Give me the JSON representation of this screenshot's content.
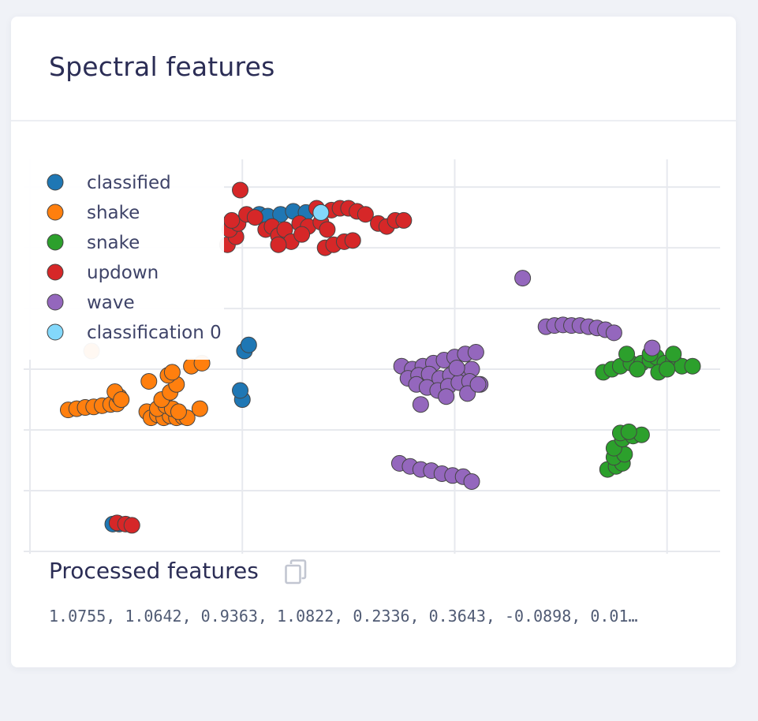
{
  "card": {
    "title": "Spectral features",
    "processed_title": "Processed features",
    "copy_icon": "copy-icon",
    "processed_values": "1.0755, 1.0642, 0.9363, 1.0822, 0.2336, 0.3643, -0.0898, 0.01…"
  },
  "chart_data": {
    "type": "scatter",
    "grid": true,
    "legend_placement": "top-left",
    "xlim": [
      0,
      3.25
    ],
    "ylim": [
      0,
      6.3
    ],
    "series": [
      {
        "name": "classified",
        "color": "#1f77b4",
        "points": [
          [
            0.39,
            0.45
          ],
          [
            0.42,
            0.45
          ],
          [
            1.0,
            2.5
          ],
          [
            0.99,
            2.65
          ],
          [
            1.01,
            3.3
          ],
          [
            1.03,
            3.4
          ],
          [
            1.08,
            5.55
          ],
          [
            1.12,
            5.52
          ],
          [
            1.18,
            5.55
          ],
          [
            1.24,
            5.6
          ],
          [
            1.3,
            5.58
          ]
        ]
      },
      {
        "name": "shake",
        "color": "#ff7f0e",
        "points": [
          [
            0.18,
            2.33
          ],
          [
            0.22,
            2.35
          ],
          [
            0.26,
            2.37
          ],
          [
            0.3,
            2.38
          ],
          [
            0.34,
            2.4
          ],
          [
            0.38,
            2.42
          ],
          [
            0.41,
            2.43
          ],
          [
            0.42,
            2.55
          ],
          [
            0.4,
            2.63
          ],
          [
            0.43,
            2.5
          ],
          [
            0.55,
            2.3
          ],
          [
            0.57,
            2.2
          ],
          [
            0.6,
            2.25
          ],
          [
            0.63,
            2.2
          ],
          [
            0.66,
            2.23
          ],
          [
            0.69,
            2.2
          ],
          [
            0.72,
            2.22
          ],
          [
            0.74,
            2.2
          ],
          [
            0.6,
            2.35
          ],
          [
            0.64,
            2.4
          ],
          [
            0.67,
            2.35
          ],
          [
            0.7,
            2.3
          ],
          [
            0.62,
            2.5
          ],
          [
            0.66,
            2.62
          ],
          [
            0.69,
            2.75
          ],
          [
            0.56,
            2.8
          ],
          [
            0.65,
            2.9
          ],
          [
            0.67,
            2.95
          ],
          [
            0.8,
            2.35
          ],
          [
            0.76,
            3.05
          ],
          [
            0.81,
            3.1
          ],
          [
            0.29,
            3.3
          ]
        ]
      },
      {
        "name": "snake",
        "color": "#2ca02c",
        "points": [
          [
            2.7,
            2.95
          ],
          [
            2.74,
            3.0
          ],
          [
            2.78,
            3.05
          ],
          [
            2.83,
            3.1
          ],
          [
            2.88,
            3.1
          ],
          [
            2.92,
            3.15
          ],
          [
            2.95,
            3.2
          ],
          [
            2.99,
            3.1
          ],
          [
            3.03,
            3.15
          ],
          [
            3.07,
            3.05
          ],
          [
            3.12,
            3.05
          ],
          [
            2.86,
            3.0
          ],
          [
            2.96,
            2.95
          ],
          [
            3.0,
            3.0
          ],
          [
            2.81,
            3.25
          ],
          [
            2.92,
            3.25
          ],
          [
            3.03,
            3.25
          ],
          [
            2.72,
            1.35
          ],
          [
            2.76,
            1.4
          ],
          [
            2.79,
            1.45
          ],
          [
            2.75,
            1.55
          ],
          [
            2.8,
            1.6
          ],
          [
            2.75,
            1.7
          ],
          [
            2.79,
            1.85
          ],
          [
            2.84,
            1.9
          ],
          [
            2.88,
            1.92
          ],
          [
            2.78,
            1.95
          ],
          [
            2.82,
            1.97
          ]
        ]
      },
      {
        "name": "updown",
        "color": "#d62728",
        "points": [
          [
            0.41,
            0.47
          ],
          [
            0.45,
            0.45
          ],
          [
            0.48,
            0.43
          ],
          [
            0.99,
            5.95
          ],
          [
            0.93,
            5.05
          ],
          [
            0.97,
            5.18
          ],
          [
            0.94,
            5.3
          ],
          [
            0.98,
            5.4
          ],
          [
            0.95,
            5.45
          ],
          [
            1.02,
            5.55
          ],
          [
            1.06,
            5.5
          ],
          [
            1.11,
            5.3
          ],
          [
            1.14,
            5.35
          ],
          [
            1.17,
            5.2
          ],
          [
            1.2,
            5.3
          ],
          [
            1.23,
            5.1
          ],
          [
            1.27,
            5.4
          ],
          [
            1.31,
            5.35
          ],
          [
            1.35,
            5.65
          ],
          [
            1.28,
            5.22
          ],
          [
            1.37,
            5.42
          ],
          [
            1.4,
            5.3
          ],
          [
            1.42,
            5.62
          ],
          [
            1.46,
            5.65
          ],
          [
            1.5,
            5.65
          ],
          [
            1.54,
            5.6
          ],
          [
            1.39,
            5.0
          ],
          [
            1.43,
            5.05
          ],
          [
            1.48,
            5.1
          ],
          [
            1.52,
            5.12
          ],
          [
            1.58,
            5.55
          ],
          [
            1.64,
            5.4
          ],
          [
            1.68,
            5.35
          ],
          [
            1.72,
            5.45
          ],
          [
            1.76,
            5.45
          ],
          [
            1.17,
            5.05
          ]
        ]
      },
      {
        "name": "wave",
        "color": "#9467bd",
        "points": [
          [
            2.32,
            4.5
          ],
          [
            2.43,
            3.7
          ],
          [
            2.47,
            3.72
          ],
          [
            2.51,
            3.73
          ],
          [
            2.55,
            3.72
          ],
          [
            2.59,
            3.72
          ],
          [
            2.63,
            3.7
          ],
          [
            2.67,
            3.68
          ],
          [
            2.71,
            3.65
          ],
          [
            2.75,
            3.6
          ],
          [
            2.93,
            3.35
          ],
          [
            1.75,
            3.05
          ],
          [
            1.8,
            3.0
          ],
          [
            1.85,
            3.05
          ],
          [
            1.9,
            3.1
          ],
          [
            1.95,
            3.15
          ],
          [
            2.0,
            3.2
          ],
          [
            2.05,
            3.25
          ],
          [
            2.1,
            3.28
          ],
          [
            1.78,
            2.85
          ],
          [
            1.83,
            2.9
          ],
          [
            1.88,
            2.92
          ],
          [
            1.93,
            2.85
          ],
          [
            1.98,
            2.9
          ],
          [
            2.03,
            2.95
          ],
          [
            2.08,
            3.0
          ],
          [
            1.82,
            2.75
          ],
          [
            1.87,
            2.7
          ],
          [
            1.92,
            2.65
          ],
          [
            1.97,
            2.72
          ],
          [
            2.02,
            2.78
          ],
          [
            2.07,
            2.8
          ],
          [
            2.12,
            2.75
          ],
          [
            1.84,
            2.42
          ],
          [
            1.96,
            2.55
          ],
          [
            2.01,
            3.02
          ],
          [
            2.06,
            2.6
          ],
          [
            2.11,
            2.75
          ],
          [
            1.74,
            1.45
          ],
          [
            1.79,
            1.4
          ],
          [
            1.84,
            1.35
          ],
          [
            1.89,
            1.33
          ],
          [
            1.94,
            1.28
          ],
          [
            1.99,
            1.25
          ],
          [
            2.04,
            1.23
          ],
          [
            2.08,
            1.15
          ]
        ]
      },
      {
        "name": "classification 0",
        "color": "#83d8fb",
        "points": [
          [
            1.37,
            5.58
          ]
        ]
      }
    ]
  }
}
